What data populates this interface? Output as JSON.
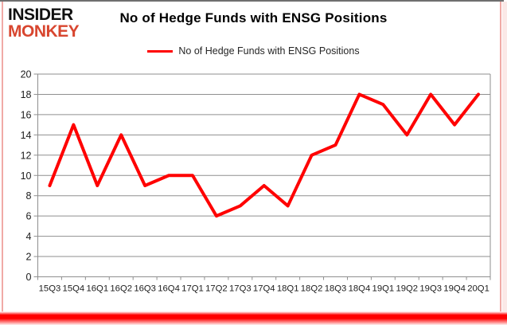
{
  "header": {
    "logo_line1": "INSIDER",
    "logo_line2": "MONKEY",
    "title": "No of Hedge Funds with ENSG Positions"
  },
  "legend": {
    "label": "No of Hedge Funds with ENSG Positions"
  },
  "colors": {
    "accent_red": "#ff0000",
    "logo_red": "#d8462f",
    "top_border_gray": "#6f6f6f",
    "border_pink": "#f0aaa6",
    "border_pink_light": "#fbe9e7"
  },
  "chart_data": {
    "type": "line",
    "title": "No of Hedge Funds with ENSG Positions",
    "categories": [
      "15Q3",
      "15Q4",
      "16Q1",
      "16Q2",
      "16Q3",
      "16Q4",
      "17Q1",
      "17Q2",
      "17Q3",
      "17Q4",
      "18Q1",
      "18Q2",
      "18Q3",
      "18Q4",
      "19Q1",
      "19Q2",
      "19Q3",
      "19Q4",
      "20Q1"
    ],
    "series": [
      {
        "name": "No of Hedge Funds with ENSG Positions",
        "color": "#ff0000",
        "values": [
          9,
          15,
          9,
          14,
          9,
          10,
          10,
          6,
          7,
          9,
          7,
          12,
          13,
          18,
          17,
          14,
          18,
          15,
          18
        ]
      }
    ],
    "xlabel": "",
    "ylabel": "",
    "ylim": [
      0,
      20
    ],
    "ytick_step": 2,
    "grid": true,
    "gridline_color": "#8f8f8f",
    "axis_text_color": "#1c1c1c",
    "legend_position": "top-center"
  }
}
